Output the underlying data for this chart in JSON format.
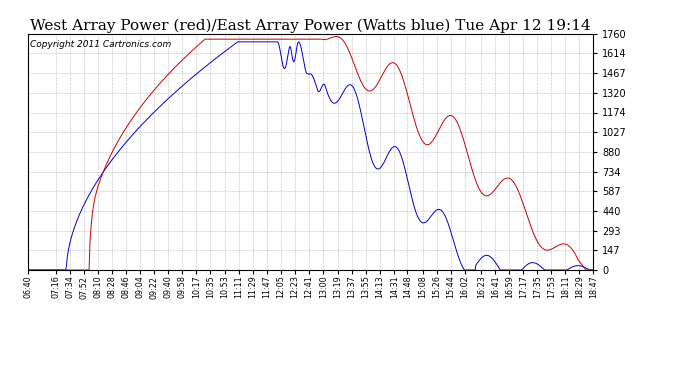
{
  "title": "West Array Power (red)/East Array Power (Watts blue) Tue Apr 12 19:14",
  "copyright": "Copyright 2011 Cartronics.com",
  "yticks": [
    0.0,
    146.7,
    293.4,
    440.1,
    586.8,
    733.5,
    880.2,
    1026.9,
    1173.6,
    1320.3,
    1467.0,
    1613.7,
    1760.4
  ],
  "ymax": 1760.4,
  "ymin": 0.0,
  "bg_color": "#ffffff",
  "grid_color": "#aaaaaa",
  "red_color": "#cc0000",
  "blue_color": "#0000cc",
  "title_fontsize": 11,
  "copyright_fontsize": 6.5,
  "x_labels": [
    "06:40",
    "07:16",
    "07:34",
    "07:52",
    "08:10",
    "08:28",
    "08:46",
    "09:04",
    "09:22",
    "09:40",
    "09:58",
    "10:17",
    "10:35",
    "10:53",
    "11:11",
    "11:29",
    "11:47",
    "12:05",
    "12:23",
    "12:41",
    "13:00",
    "13:19",
    "13:37",
    "13:55",
    "14:13",
    "14:31",
    "14:48",
    "15:08",
    "15:26",
    "15:44",
    "16:02",
    "16:23",
    "16:41",
    "16:59",
    "17:17",
    "17:35",
    "17:53",
    "18:11",
    "18:29",
    "18:47"
  ]
}
